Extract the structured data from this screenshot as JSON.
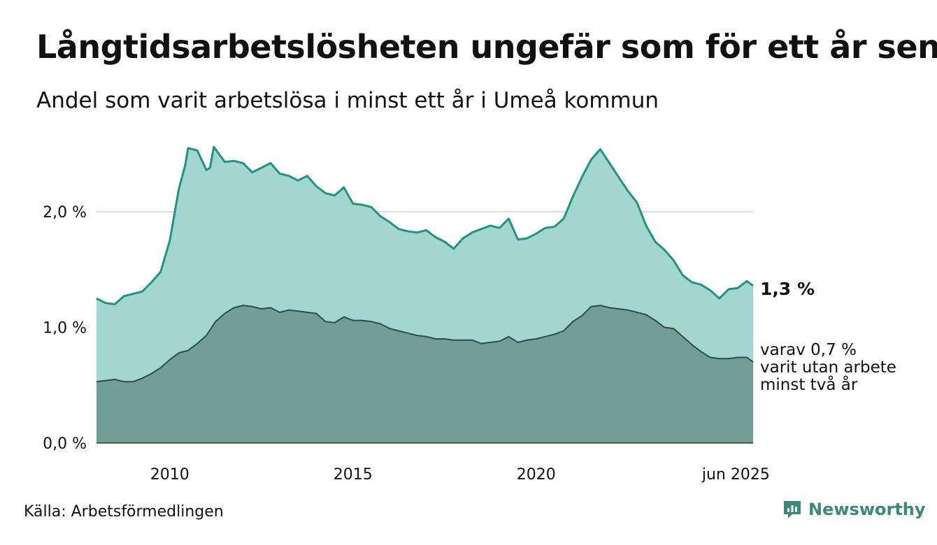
{
  "title": "Långtidsarbetslösheten ungefär som för ett år sen",
  "subtitle": "Andel som varit arbetslösa i minst ett år i Umeå kommun",
  "source": "Källa: Arbetsförmedlingen",
  "brand": {
    "name": "Newsworthy",
    "icon": "newsworthy-logo-icon",
    "color": "#3a8a78"
  },
  "chart_data": {
    "type": "area",
    "x_start": "2008-01",
    "x_end": "2025-06",
    "ylim": [
      0,
      2.5
    ],
    "y_ticks": [
      {
        "value": 0.0,
        "label": "0,0 %"
      },
      {
        "value": 1.0,
        "label": "1,0 %"
      },
      {
        "value": 2.0,
        "label": "2,0 %"
      }
    ],
    "x_ticks": [
      {
        "value": 2010,
        "label": "2010"
      },
      {
        "value": 2015,
        "label": "2015"
      },
      {
        "value": 2020,
        "label": "2020"
      },
      {
        "value": 2025.45,
        "label": "jun 2025"
      }
    ],
    "grid": true,
    "series": [
      {
        "color_fill": "#a3d6d0",
        "color_line": "#1f9484",
        "end_label": "1,3 %",
        "points": [
          [
            2008.0,
            1.25
          ],
          [
            2008.25,
            1.21
          ],
          [
            2008.5,
            1.2
          ],
          [
            2008.75,
            1.27
          ],
          [
            2009.0,
            1.29
          ],
          [
            2009.25,
            1.31
          ],
          [
            2009.5,
            1.39
          ],
          [
            2009.75,
            1.48
          ],
          [
            2010.0,
            1.75
          ],
          [
            2010.25,
            2.2
          ],
          [
            2010.42,
            2.4
          ],
          [
            2010.5,
            2.55
          ],
          [
            2010.75,
            2.53
          ],
          [
            2011.0,
            2.36
          ],
          [
            2011.1,
            2.38
          ],
          [
            2011.2,
            2.56
          ],
          [
            2011.5,
            2.43
          ],
          [
            2011.75,
            2.44
          ],
          [
            2012.0,
            2.42
          ],
          [
            2012.25,
            2.34
          ],
          [
            2012.5,
            2.38
          ],
          [
            2012.75,
            2.42
          ],
          [
            2013.0,
            2.33
          ],
          [
            2013.25,
            2.31
          ],
          [
            2013.5,
            2.27
          ],
          [
            2013.75,
            2.31
          ],
          [
            2014.0,
            2.22
          ],
          [
            2014.25,
            2.16
          ],
          [
            2014.5,
            2.14
          ],
          [
            2014.75,
            2.21
          ],
          [
            2015.0,
            2.07
          ],
          [
            2015.25,
            2.06
          ],
          [
            2015.5,
            2.04
          ],
          [
            2015.75,
            1.96
          ],
          [
            2016.0,
            1.91
          ],
          [
            2016.25,
            1.85
          ],
          [
            2016.5,
            1.83
          ],
          [
            2016.75,
            1.82
          ],
          [
            2017.0,
            1.84
          ],
          [
            2017.25,
            1.78
          ],
          [
            2017.5,
            1.74
          ],
          [
            2017.75,
            1.68
          ],
          [
            2018.0,
            1.77
          ],
          [
            2018.25,
            1.82
          ],
          [
            2018.5,
            1.85
          ],
          [
            2018.75,
            1.88
          ],
          [
            2019.0,
            1.86
          ],
          [
            2019.25,
            1.94
          ],
          [
            2019.5,
            1.76
          ],
          [
            2019.75,
            1.77
          ],
          [
            2020.0,
            1.81
          ],
          [
            2020.25,
            1.86
          ],
          [
            2020.5,
            1.87
          ],
          [
            2020.75,
            1.94
          ],
          [
            2021.0,
            2.13
          ],
          [
            2021.25,
            2.3
          ],
          [
            2021.5,
            2.45
          ],
          [
            2021.75,
            2.54
          ],
          [
            2022.0,
            2.42
          ],
          [
            2022.25,
            2.3
          ],
          [
            2022.5,
            2.18
          ],
          [
            2022.75,
            2.08
          ],
          [
            2023.0,
            1.88
          ],
          [
            2023.25,
            1.74
          ],
          [
            2023.5,
            1.67
          ],
          [
            2023.75,
            1.58
          ],
          [
            2024.0,
            1.45
          ],
          [
            2024.25,
            1.39
          ],
          [
            2024.5,
            1.37
          ],
          [
            2024.75,
            1.32
          ],
          [
            2025.0,
            1.25
          ],
          [
            2025.25,
            1.33
          ],
          [
            2025.5,
            1.34
          ],
          [
            2025.75,
            1.4
          ],
          [
            2025.92,
            1.36
          ]
        ]
      },
      {
        "color_fill": "#729e96",
        "color_line": "#2d4e47",
        "end_label_lines": [
          "varav 0,7 %",
          "varit utan arbete",
          "minst två år"
        ],
        "points": [
          [
            2008.0,
            0.53
          ],
          [
            2008.25,
            0.54
          ],
          [
            2008.5,
            0.55
          ],
          [
            2008.75,
            0.53
          ],
          [
            2009.0,
            0.53
          ],
          [
            2009.25,
            0.56
          ],
          [
            2009.5,
            0.6
          ],
          [
            2009.75,
            0.65
          ],
          [
            2010.0,
            0.72
          ],
          [
            2010.25,
            0.78
          ],
          [
            2010.5,
            0.8
          ],
          [
            2010.75,
            0.86
          ],
          [
            2011.0,
            0.93
          ],
          [
            2011.25,
            1.05
          ],
          [
            2011.5,
            1.12
          ],
          [
            2011.75,
            1.17
          ],
          [
            2012.0,
            1.19
          ],
          [
            2012.25,
            1.18
          ],
          [
            2012.5,
            1.16
          ],
          [
            2012.75,
            1.17
          ],
          [
            2013.0,
            1.13
          ],
          [
            2013.25,
            1.15
          ],
          [
            2013.5,
            1.14
          ],
          [
            2013.75,
            1.13
          ],
          [
            2014.0,
            1.12
          ],
          [
            2014.25,
            1.05
          ],
          [
            2014.5,
            1.04
          ],
          [
            2014.75,
            1.09
          ],
          [
            2015.0,
            1.06
          ],
          [
            2015.25,
            1.06
          ],
          [
            2015.5,
            1.05
          ],
          [
            2015.75,
            1.03
          ],
          [
            2016.0,
            0.99
          ],
          [
            2016.25,
            0.97
          ],
          [
            2016.5,
            0.95
          ],
          [
            2016.75,
            0.93
          ],
          [
            2017.0,
            0.92
          ],
          [
            2017.25,
            0.9
          ],
          [
            2017.5,
            0.9
          ],
          [
            2017.75,
            0.89
          ],
          [
            2018.0,
            0.89
          ],
          [
            2018.25,
            0.89
          ],
          [
            2018.5,
            0.86
          ],
          [
            2018.75,
            0.87
          ],
          [
            2019.0,
            0.88
          ],
          [
            2019.25,
            0.92
          ],
          [
            2019.5,
            0.87
          ],
          [
            2019.75,
            0.89
          ],
          [
            2020.0,
            0.9
          ],
          [
            2020.25,
            0.92
          ],
          [
            2020.5,
            0.94
          ],
          [
            2020.75,
            0.97
          ],
          [
            2021.0,
            1.05
          ],
          [
            2021.25,
            1.1
          ],
          [
            2021.5,
            1.18
          ],
          [
            2021.75,
            1.19
          ],
          [
            2022.0,
            1.17
          ],
          [
            2022.25,
            1.16
          ],
          [
            2022.5,
            1.15
          ],
          [
            2022.75,
            1.13
          ],
          [
            2023.0,
            1.11
          ],
          [
            2023.25,
            1.06
          ],
          [
            2023.5,
            1.0
          ],
          [
            2023.75,
            0.99
          ],
          [
            2024.0,
            0.92
          ],
          [
            2024.25,
            0.85
          ],
          [
            2024.5,
            0.79
          ],
          [
            2024.75,
            0.74
          ],
          [
            2025.0,
            0.73
          ],
          [
            2025.25,
            0.73
          ],
          [
            2025.5,
            0.74
          ],
          [
            2025.75,
            0.74
          ],
          [
            2025.92,
            0.7
          ]
        ]
      }
    ]
  }
}
